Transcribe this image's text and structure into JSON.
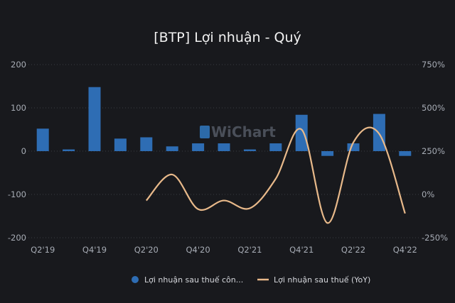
{
  "chart_data": {
    "type": "bar",
    "title": "[BTP] Lợi nhuận - Quý",
    "watermark": "WiChart",
    "categories": [
      "Q2'19",
      "Q3'19",
      "Q4'19",
      "Q1'20",
      "Q2'20",
      "Q3'20",
      "Q4'20",
      "Q1'21",
      "Q2'21",
      "Q3'21",
      "Q4'21",
      "Q1'22",
      "Q2'22",
      "Q3'22",
      "Q4'22"
    ],
    "x_tick_labels": [
      "Q2'19",
      "Q4'19",
      "Q2'20",
      "Q4'20",
      "Q2'21",
      "Q4'21",
      "Q2'22",
      "Q4'22"
    ],
    "y_left": {
      "ticks": [
        200,
        100,
        0,
        -100,
        -200
      ],
      "ylim": [
        -200,
        200
      ]
    },
    "y_right": {
      "ticks": [
        "750%",
        "500%",
        "250%",
        "0%",
        "-250%"
      ],
      "ylim": [
        -250,
        750
      ]
    },
    "series": [
      {
        "name": "Lợi nhuận sau thuế côn...",
        "type": "bar",
        "axis": "left",
        "color": "#2e6db4",
        "values": [
          52,
          4,
          148,
          29,
          32,
          11,
          18,
          18,
          4,
          18,
          84,
          -11,
          18,
          86,
          -11
        ]
      },
      {
        "name": "Lợi nhuận sau thuế (YoY)",
        "type": "line",
        "axis": "right",
        "color": "#e8b98a",
        "values": [
          null,
          null,
          null,
          null,
          -35,
          115,
          -85,
          -35,
          -80,
          90,
          375,
          -165,
          300,
          350,
          -110
        ]
      }
    ],
    "legend_position": "bottom",
    "grid": true
  }
}
